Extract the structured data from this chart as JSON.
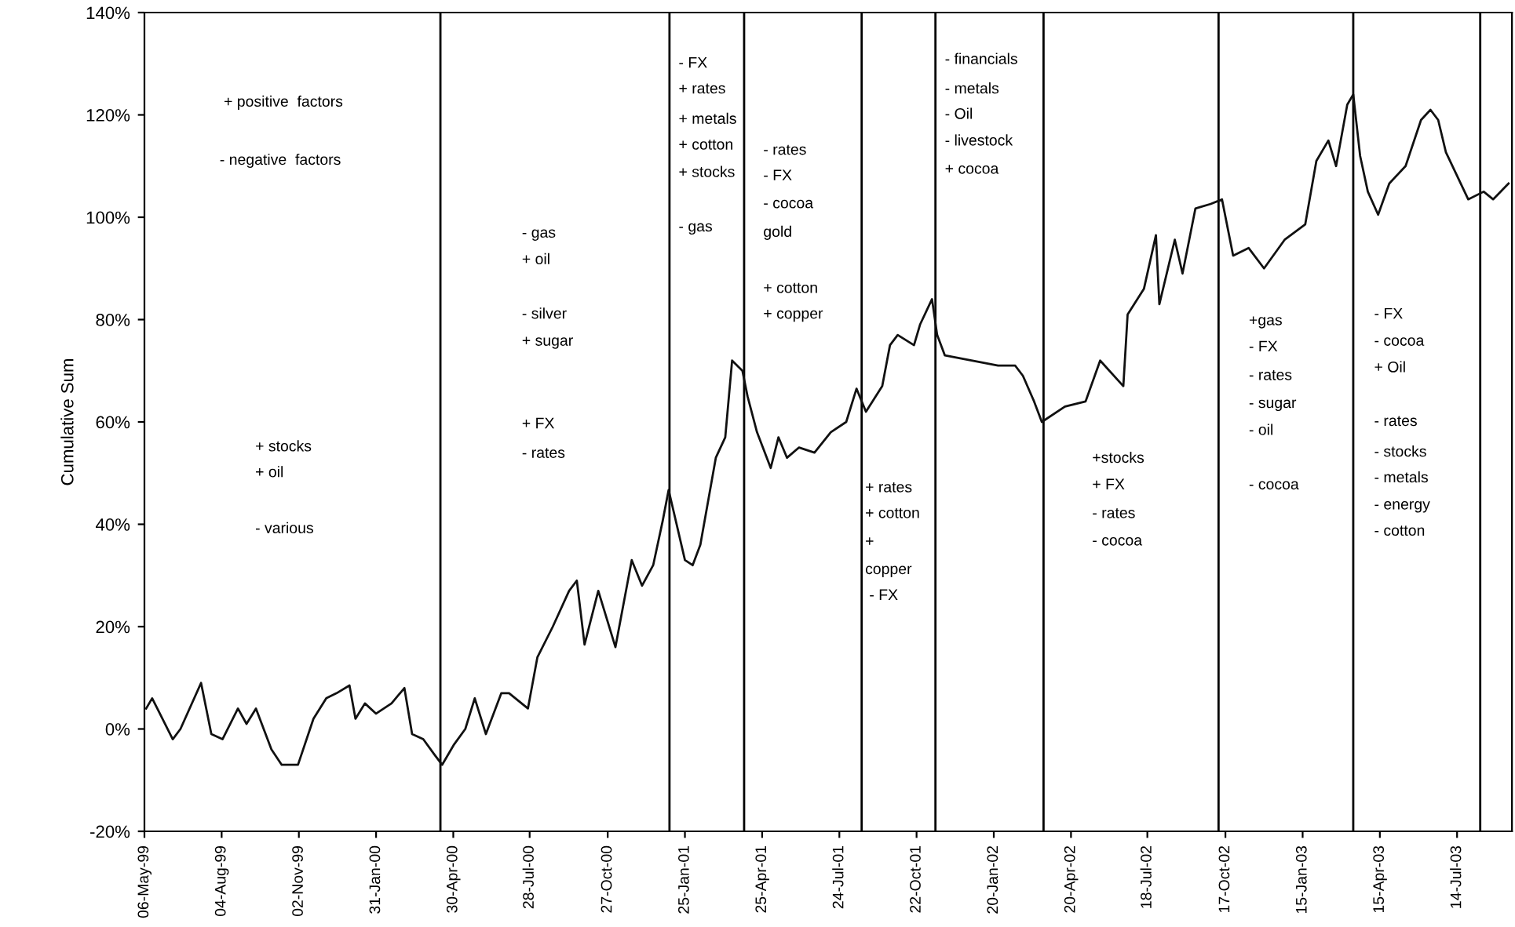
{
  "chart_data": {
    "type": "line",
    "ylabel": "Cumulative Sum",
    "x": [
      "1999-05-08",
      "1999-05-15",
      "1999-05-21",
      "1999-06-08",
      "1999-06-17",
      "1999-07-11",
      "1999-07-23",
      "1999-08-05",
      "1999-08-23",
      "1999-09-02",
      "1999-09-13",
      "1999-10-01",
      "1999-10-13",
      "1999-11-01",
      "1999-11-19",
      "1999-12-04",
      "1999-12-16",
      "1999-12-31",
      "2000-01-07",
      "2000-01-18",
      "2000-01-31",
      "2000-02-18",
      "2000-03-04",
      "2000-03-13",
      "2000-03-26",
      "2000-04-08",
      "2000-04-17",
      "2000-05-01",
      "2000-05-14",
      "2000-05-25",
      "2000-06-07",
      "2000-06-25",
      "2000-07-04",
      "2000-07-26",
      "2000-08-06",
      "2000-08-24",
      "2000-09-12",
      "2000-09-21",
      "2000-09-30",
      "2000-10-16",
      "2000-11-05",
      "2000-11-24",
      "2000-12-06",
      "2000-12-19",
      "2000-12-30",
      "2001-01-06",
      "2001-01-25",
      "2001-02-03",
      "2001-02-12",
      "2001-03-02",
      "2001-03-13",
      "2001-03-21",
      "2001-04-02",
      "2001-04-08",
      "2001-04-19",
      "2001-05-05",
      "2001-05-14",
      "2001-05-24",
      "2001-06-07",
      "2001-06-25",
      "2001-07-14",
      "2001-08-01",
      "2001-08-13",
      "2001-08-24",
      "2001-09-12",
      "2001-09-21",
      "2001-09-30",
      "2001-10-19",
      "2001-10-26",
      "2001-11-09",
      "2001-11-15",
      "2001-11-24",
      "2001-12-25",
      "2002-01-25",
      "2002-02-14",
      "2002-02-23",
      "2002-03-08",
      "2002-03-17",
      "2002-04-13",
      "2002-05-07",
      "2002-05-24",
      "2002-06-20",
      "2002-06-25",
      "2002-07-14",
      "2002-07-28",
      "2002-08-01",
      "2002-08-19",
      "2002-08-28",
      "2002-09-12",
      "2002-09-30",
      "2002-10-13",
      "2002-10-26",
      "2002-11-13",
      "2002-12-01",
      "2002-12-25",
      "2003-01-18",
      "2003-01-31",
      "2003-02-14",
      "2003-02-23",
      "2003-03-08",
      "2003-03-15",
      "2003-03-23",
      "2003-04-01",
      "2003-04-13",
      "2003-04-26",
      "2003-05-15",
      "2003-06-02",
      "2003-06-13",
      "2003-06-22",
      "2003-07-01",
      "2003-07-27",
      "2003-08-14",
      "2003-08-25",
      "2003-09-12"
    ],
    "series": [
      {
        "color": "#111111",
        "values": [
          4,
          6,
          4,
          -2,
          0,
          9,
          -1,
          -2,
          4,
          1,
          4,
          -4,
          -7,
          -7,
          2,
          6,
          7,
          8.5,
          2,
          5,
          3,
          5,
          8,
          -1,
          -2,
          -5,
          -7,
          -3,
          0,
          6,
          -1,
          7,
          7,
          4,
          14,
          20,
          27,
          29,
          16.5,
          27,
          16,
          33,
          28,
          32,
          40.6,
          46.7,
          33,
          32,
          36,
          53,
          57,
          72,
          70,
          65,
          58,
          51,
          57,
          53,
          55,
          54,
          58,
          60,
          66.5,
          62,
          67,
          75,
          77,
          75,
          79,
          84,
          77,
          73,
          72,
          71,
          71,
          69,
          64,
          60,
          63,
          64,
          72,
          67,
          81,
          86,
          96.5,
          83,
          95.6,
          89,
          101.7,
          102.6,
          103.5,
          92.5,
          94,
          90,
          95.6,
          98.6,
          111,
          115,
          110,
          122,
          124,
          112,
          105,
          100.5,
          106.6,
          110,
          119,
          121,
          119,
          112.7,
          103.5,
          105,
          103.5,
          106.6
        ]
      }
    ],
    "xlim": [
      "1999-05-06",
      "2003-09-16"
    ],
    "xticks": [
      {
        "value": "1999-05-06",
        "label": "06-May-99"
      },
      {
        "value": "1999-08-04",
        "label": "04-Aug-99"
      },
      {
        "value": "1999-11-02",
        "label": "02-Nov-99"
      },
      {
        "value": "2000-01-31",
        "label": "31-Jan-00"
      },
      {
        "value": "2000-04-30",
        "label": "30-Apr-00"
      },
      {
        "value": "2000-07-28",
        "label": "28-Jul-00"
      },
      {
        "value": "2000-10-27",
        "label": "27-Oct-00"
      },
      {
        "value": "2001-01-25",
        "label": "25-Jan-01"
      },
      {
        "value": "2001-04-25",
        "label": "25-Apr-01"
      },
      {
        "value": "2001-07-24",
        "label": "24-Jul-01"
      },
      {
        "value": "2001-10-22",
        "label": "22-Oct-01"
      },
      {
        "value": "2002-01-20",
        "label": "20-Jan-02"
      },
      {
        "value": "2002-04-20",
        "label": "20-Apr-02"
      },
      {
        "value": "2002-07-18",
        "label": "18-Jul-02"
      },
      {
        "value": "2002-10-17",
        "label": "17-Oct-02"
      },
      {
        "value": "2003-01-15",
        "label": "15-Jan-03"
      },
      {
        "value": "2003-04-15",
        "label": "15-Apr-03"
      },
      {
        "value": "2003-07-14",
        "label": "14-Jul-03"
      }
    ],
    "ylim": [
      -20,
      140
    ],
    "yticks": [
      {
        "value": -20,
        "label": "-20%"
      },
      {
        "value": 0,
        "label": "0%"
      },
      {
        "value": 20,
        "label": "20%"
      },
      {
        "value": 40,
        "label": "40%"
      },
      {
        "value": 60,
        "label": "60%"
      },
      {
        "value": 80,
        "label": "80%"
      },
      {
        "value": 100,
        "label": "100%"
      },
      {
        "value": 120,
        "label": "120%"
      },
      {
        "value": 140,
        "label": "140%"
      }
    ],
    "ref_lines": [
      {
        "axis": "x",
        "value": "2000-04-15",
        "color": "#000000"
      },
      {
        "axis": "x",
        "value": "2001-01-07",
        "color": "#000000"
      },
      {
        "axis": "x",
        "value": "2001-04-04",
        "color": "#000000"
      },
      {
        "axis": "x",
        "value": "2001-08-19",
        "color": "#000000"
      },
      {
        "axis": "x",
        "value": "2001-11-13",
        "color": "#000000"
      },
      {
        "axis": "x",
        "value": "2002-03-19",
        "color": "#000000"
      },
      {
        "axis": "x",
        "value": "2002-10-09",
        "color": "#000000"
      },
      {
        "axis": "x",
        "value": "2003-03-15",
        "color": "#000000"
      },
      {
        "axis": "x",
        "value": "2003-08-10",
        "color": "#000000"
      }
    ],
    "annotations": [
      "+ positive  factors",
      "- negative  factors",
      "+ stocks",
      "+ oil",
      "- various",
      "- gas",
      "+ oil",
      "- silver",
      "+ sugar",
      "+ FX",
      "- rates",
      "- FX",
      "+ rates",
      "+ metals",
      "+ cotton",
      "+ stocks",
      "- gas",
      "- rates",
      "- FX",
      "- cocoa",
      "gold",
      "+ cotton",
      "+ copper",
      "+ rates",
      "+ cotton",
      "+",
      "copper",
      "- FX",
      "- financials",
      "- metals",
      "- Oil",
      "- livestock",
      "+ cocoa",
      "+stocks",
      "+ FX",
      "- rates",
      "- cocoa",
      "+gas",
      "- FX",
      "- rates",
      "- sugar",
      "- oil",
      "- cocoa",
      "- FX",
      "- cocoa",
      "+ Oil",
      "- rates",
      "- stocks",
      "- metals",
      "- energy",
      "- cotton"
    ],
    "grid": false,
    "legend": false,
    "marker": "none",
    "line_style": "solid"
  }
}
